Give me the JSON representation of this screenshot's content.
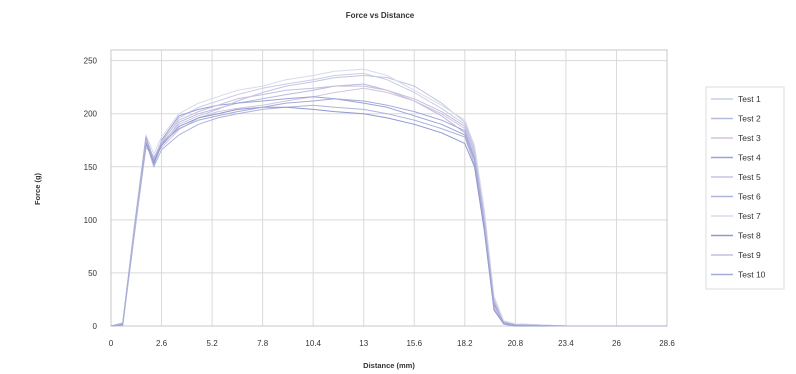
{
  "chart_data": {
    "type": "line",
    "title": "Force vs Distance",
    "xlabel": "Distance (mm)",
    "ylabel": "Force (g)",
    "xlim": [
      0,
      28.6
    ],
    "ylim": [
      0,
      260
    ],
    "x_ticks": [
      "0",
      "2.6",
      "5.2",
      "7.8",
      "10.4",
      "13",
      "15.6",
      "18.2",
      "20.8",
      "23.4",
      "26",
      "28.6"
    ],
    "y_ticks": [
      "0",
      "50",
      "100",
      "150",
      "200",
      "250"
    ],
    "grid": true,
    "legend_position": "right",
    "series": [
      {
        "name": "Test 1",
        "color": "#c9cde8",
        "x": [
          0,
          0.6,
          1.2,
          1.8,
          2.2,
          2.6,
          3.5,
          4.5,
          5.5,
          6.5,
          7.8,
          9,
          10.4,
          11.5,
          13,
          14.2,
          15.6,
          17,
          18.2,
          18.7,
          19.2,
          19.7,
          20.2,
          20.8,
          23.4,
          26,
          28.6
        ],
        "y": [
          0,
          2,
          95,
          178,
          150,
          172,
          196,
          206,
          212,
          218,
          224,
          228,
          232,
          236,
          238,
          232,
          220,
          205,
          190,
          165,
          105,
          25,
          3,
          2,
          0,
          0,
          0
        ]
      },
      {
        "name": "Test 2",
        "color": "#b6bce0",
        "x": [
          0,
          0.6,
          1.2,
          1.8,
          2.2,
          2.6,
          3.5,
          4.5,
          5.5,
          6.5,
          7.8,
          9,
          10.4,
          11.5,
          13,
          14.2,
          15.6,
          17,
          18.2,
          18.7,
          19.2,
          19.7,
          20.2,
          20.8,
          23.4,
          26,
          28.6
        ],
        "y": [
          0,
          3,
          90,
          172,
          155,
          170,
          192,
          200,
          205,
          210,
          214,
          218,
          222,
          226,
          228,
          222,
          212,
          198,
          182,
          160,
          100,
          20,
          4,
          1,
          0,
          0,
          0
        ]
      },
      {
        "name": "Test 3",
        "color": "#d6c4dc",
        "x": [
          0,
          0.6,
          1.2,
          1.8,
          2.2,
          2.6,
          3.5,
          4.5,
          5.5,
          6.5,
          7.8,
          9,
          10.4,
          11.5,
          13,
          14.2,
          15.6,
          17,
          18.2,
          18.7,
          19.2,
          19.7,
          20.2,
          20.8,
          23.4,
          26,
          28.6
        ],
        "y": [
          0,
          1,
          85,
          168,
          160,
          168,
          185,
          196,
          202,
          205,
          208,
          212,
          216,
          220,
          224,
          220,
          212,
          200,
          186,
          162,
          95,
          18,
          2,
          0,
          0,
          0,
          0
        ]
      },
      {
        "name": "Test 4",
        "color": "#9aa2d6",
        "x": [
          0,
          0.6,
          1.2,
          1.8,
          2.2,
          2.6,
          3.5,
          4.5,
          5.5,
          6.5,
          7.8,
          9,
          10.4,
          11.5,
          13,
          14.2,
          15.6,
          17,
          18.2,
          18.7,
          19.2,
          19.7,
          20.2,
          20.8,
          23.4,
          26,
          28.6
        ],
        "y": [
          0,
          2,
          92,
          176,
          152,
          175,
          198,
          204,
          208,
          210,
          212,
          214,
          216,
          214,
          210,
          206,
          198,
          190,
          180,
          156,
          98,
          22,
          3,
          1,
          0,
          0,
          0
        ]
      },
      {
        "name": "Test 5",
        "color": "#c2c6e4",
        "x": [
          0,
          0.6,
          1.2,
          1.8,
          2.2,
          2.6,
          3.5,
          4.5,
          5.5,
          6.5,
          7.8,
          9,
          10.4,
          11.5,
          13,
          14.2,
          15.6,
          17,
          18.2,
          18.7,
          19.2,
          19.7,
          20.2,
          20.8,
          23.4,
          26,
          28.6
        ],
        "y": [
          0,
          2,
          88,
          170,
          158,
          172,
          190,
          198,
          204,
          212,
          220,
          226,
          230,
          234,
          236,
          234,
          226,
          210,
          192,
          168,
          108,
          26,
          4,
          2,
          0,
          0,
          0
        ]
      },
      {
        "name": "Test 6",
        "color": "#aeb4dc",
        "x": [
          0,
          0.6,
          1.2,
          1.8,
          2.2,
          2.6,
          3.5,
          4.5,
          5.5,
          6.5,
          7.8,
          9,
          10.4,
          11.5,
          13,
          14.2,
          15.6,
          17,
          18.2,
          18.7,
          19.2,
          19.7,
          20.2,
          20.8,
          23.4,
          26,
          28.6
        ],
        "y": [
          0,
          1,
          86,
          174,
          150,
          166,
          180,
          190,
          196,
          200,
          204,
          206,
          208,
          206,
          204,
          200,
          194,
          186,
          178,
          152,
          92,
          16,
          2,
          0,
          0,
          0,
          0
        ]
      },
      {
        "name": "Test 7",
        "color": "#d8dae8",
        "x": [
          0,
          0.6,
          1.2,
          1.8,
          2.2,
          2.6,
          3.5,
          4.5,
          5.5,
          6.5,
          7.8,
          9,
          10.4,
          11.5,
          13,
          14.2,
          15.6,
          17,
          18.2,
          18.7,
          19.2,
          19.7,
          20.2,
          20.8,
          23.4,
          26,
          28.6
        ],
        "y": [
          0,
          2,
          94,
          180,
          162,
          178,
          200,
          210,
          216,
          222,
          226,
          232,
          236,
          240,
          242,
          236,
          222,
          208,
          194,
          170,
          110,
          28,
          5,
          2,
          0,
          0,
          0
        ]
      },
      {
        "name": "Test 8",
        "color": "#8f98d0",
        "x": [
          0,
          0.6,
          1.2,
          1.8,
          2.2,
          2.6,
          3.5,
          4.5,
          5.5,
          6.5,
          7.8,
          9,
          10.4,
          11.5,
          13,
          14.2,
          15.6,
          17,
          18.2,
          18.7,
          19.2,
          19.7,
          20.2,
          20.8,
          23.4,
          26,
          28.6
        ],
        "y": [
          0,
          1,
          90,
          172,
          154,
          170,
          188,
          196,
          200,
          204,
          206,
          206,
          204,
          202,
          200,
          196,
          190,
          182,
          172,
          150,
          90,
          15,
          2,
          0,
          0,
          0,
          0
        ]
      },
      {
        "name": "Test 9",
        "color": "#c6bfdd",
        "x": [
          0,
          0.6,
          1.2,
          1.8,
          2.2,
          2.6,
          3.5,
          4.5,
          5.5,
          6.5,
          7.8,
          9,
          10.4,
          11.5,
          13,
          14.2,
          15.6,
          17,
          18.2,
          18.7,
          19.2,
          19.7,
          20.2,
          20.8,
          23.4,
          26,
          28.6
        ],
        "y": [
          0,
          2,
          88,
          176,
          158,
          174,
          194,
          202,
          208,
          214,
          218,
          222,
          224,
          226,
          226,
          222,
          214,
          202,
          188,
          164,
          102,
          24,
          3,
          1,
          0,
          0,
          0
        ]
      },
      {
        "name": "Test 10",
        "color": "#a4abd9",
        "x": [
          0,
          0.6,
          1.2,
          1.8,
          2.2,
          2.6,
          3.5,
          4.5,
          5.5,
          6.5,
          7.8,
          9,
          10.4,
          11.5,
          13,
          14.2,
          15.6,
          17,
          18.2,
          18.7,
          19.2,
          19.7,
          20.2,
          20.8,
          23.4,
          26,
          28.6
        ],
        "y": [
          0,
          2,
          91,
          178,
          156,
          172,
          186,
          194,
          198,
          202,
          206,
          210,
          212,
          214,
          212,
          208,
          202,
          194,
          184,
          158,
          96,
          20,
          3,
          1,
          0,
          0,
          0
        ]
      }
    ]
  }
}
